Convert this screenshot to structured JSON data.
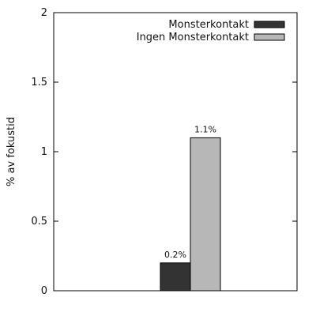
{
  "chart_data": {
    "type": "bar",
    "title": "",
    "xlabel": "",
    "ylabel": "% av fokustid",
    "ylim": [
      0,
      2
    ],
    "yticks": [
      {
        "value": 0,
        "label": "0"
      },
      {
        "value": 0.5,
        "label": "0.5"
      },
      {
        "value": 1,
        "label": "1"
      },
      {
        "value": 1.5,
        "label": "1.5"
      },
      {
        "value": 2,
        "label": "2"
      }
    ],
    "categories": [
      ""
    ],
    "series": [
      {
        "name": "Monsterkontakt",
        "values": [
          0.2
        ],
        "value_labels": [
          "0.2%"
        ],
        "color": "#333333"
      },
      {
        "name": "Ingen Monsterkontakt",
        "values": [
          1.1
        ],
        "value_labels": [
          "1.1%"
        ],
        "color": "#b7b7b7"
      }
    ],
    "grid": false,
    "legend_position": "top-right"
  }
}
